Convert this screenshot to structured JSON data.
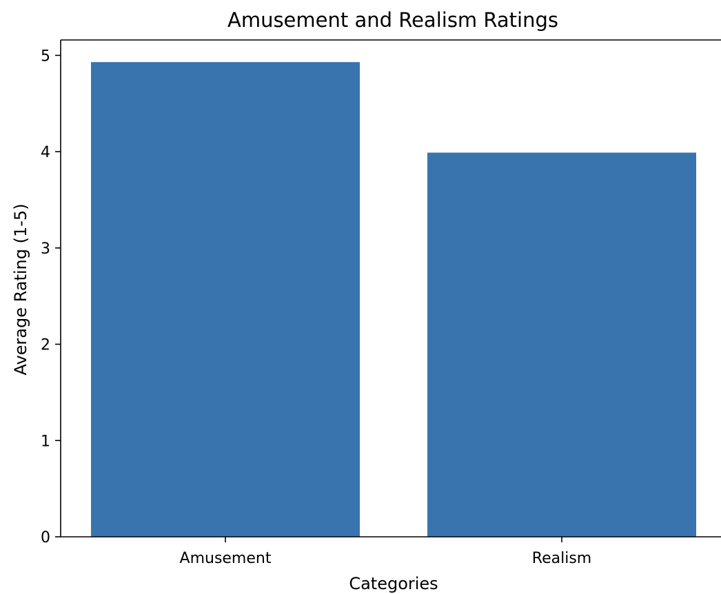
{
  "chart_data": {
    "type": "bar",
    "title": "Amusement and Realism Ratings",
    "xlabel": "Categories",
    "ylabel": "Average Rating (1-5)",
    "categories": [
      "Amusement",
      "Realism"
    ],
    "values": [
      4.93,
      3.99
    ],
    "ylim": [
      0,
      5.16
    ],
    "yticks": [
      "0",
      "1",
      "2",
      "3",
      "4",
      "5"
    ],
    "grid": false,
    "legend": "none",
    "bar_color": "#3a74ae"
  }
}
